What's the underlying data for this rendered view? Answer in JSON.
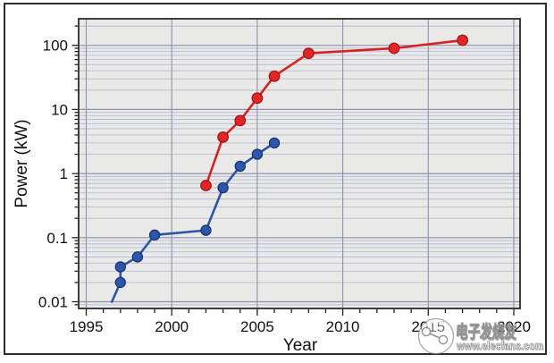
{
  "chart_data": {
    "type": "line",
    "title": "",
    "xlabel": "Year",
    "ylabel": "Power (kW)",
    "x_axis": {
      "min": 1994.55,
      "max": 2020.45,
      "major_ticks": [
        1995,
        2000,
        2005,
        2010,
        2015,
        2020
      ],
      "minor_tick_step_years": 1,
      "vertical_gridlines_at_major": true
    },
    "y_axis": {
      "scale": "log",
      "min": 0.008,
      "max": 250,
      "major_ticks": [
        0.01,
        0.1,
        1,
        10,
        100
      ],
      "tick_labels": [
        "0.01",
        "0.1",
        "1",
        "10",
        "100"
      ],
      "minor_gridlines": true
    },
    "legend": "none",
    "grid_on": true,
    "series": [
      {
        "name": "blue-power-series",
        "color": "#2e55a4",
        "marker_fill": "#2a57ab",
        "marker_edge": "#17336b",
        "marker_radius": 5.6,
        "line_start": [
          1996.5,
          0.01
        ],
        "points": [
          [
            1997,
            0.02
          ],
          [
            1997,
            0.035
          ],
          [
            1998,
            0.05
          ],
          [
            1999,
            0.11
          ],
          [
            2002,
            0.13
          ],
          [
            2003,
            0.6
          ],
          [
            2004,
            1.3
          ],
          [
            2005,
            2.0
          ],
          [
            2006,
            3.0
          ]
        ]
      },
      {
        "name": "red-power-series",
        "color": "#d92121",
        "marker_fill": "#e32525",
        "marker_edge": "#a41212",
        "marker_radius": 5.8,
        "points": [
          [
            2002,
            0.65
          ],
          [
            2003,
            3.7
          ],
          [
            2004,
            6.7
          ],
          [
            2005,
            15
          ],
          [
            2006,
            33
          ],
          [
            2008,
            75
          ],
          [
            2013,
            90
          ],
          [
            2017,
            120
          ]
        ]
      }
    ]
  },
  "colors": {
    "plot_background": "#e9e9e8",
    "grid_minor": "#b7bad4",
    "grid_major": "#8e92ae",
    "frame": "#2b2b2b",
    "tick": "#222222",
    "text": "#111111"
  },
  "watermark": {
    "brand": "电子发烧友",
    "url": "www.elecfans.com",
    "icon": "elecfans-circle-plug-icon"
  }
}
